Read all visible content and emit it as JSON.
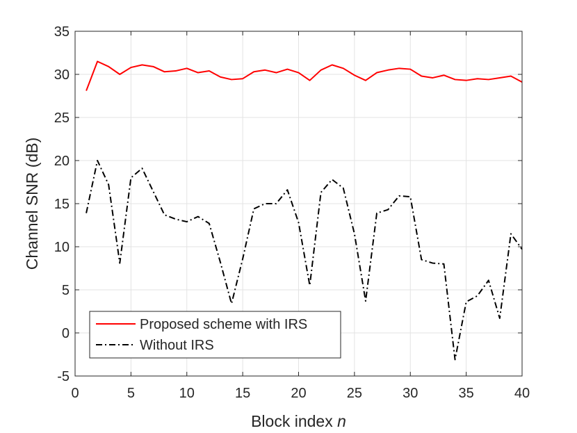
{
  "chart_data": {
    "type": "line",
    "title": "",
    "xlabel": "Block index",
    "xlabel_var": "n",
    "ylabel": "Channel SNR (dB)",
    "xlim": [
      0,
      40
    ],
    "ylim": [
      -5,
      35
    ],
    "xticks": [
      0,
      5,
      10,
      15,
      20,
      25,
      30,
      35,
      40
    ],
    "yticks": [
      -5,
      0,
      5,
      10,
      15,
      20,
      25,
      30,
      35
    ],
    "xtick_labels": [
      "0",
      "5",
      "10",
      "15",
      "20",
      "25",
      "30",
      "35",
      "40"
    ],
    "ytick_labels": [
      "-5",
      "0",
      "5",
      "10",
      "15",
      "20",
      "25",
      "30",
      "35"
    ],
    "grid": true,
    "legend_position": "bottom-left",
    "x": [
      1,
      2,
      3,
      4,
      5,
      6,
      7,
      8,
      9,
      10,
      11,
      12,
      13,
      14,
      15,
      16,
      17,
      18,
      19,
      20,
      21,
      22,
      23,
      24,
      25,
      26,
      27,
      28,
      29,
      30,
      31,
      32,
      33,
      34,
      35,
      36,
      37,
      38,
      39,
      40
    ],
    "series": [
      {
        "name": "Proposed scheme with IRS",
        "color": "#ff0000",
        "line_style": "solid",
        "values": [
          28.1,
          31.5,
          30.9,
          30.0,
          30.8,
          31.1,
          30.9,
          30.3,
          30.4,
          30.7,
          30.2,
          30.4,
          29.7,
          29.4,
          29.5,
          30.3,
          30.5,
          30.2,
          30.6,
          30.2,
          29.3,
          30.5,
          31.1,
          30.7,
          29.9,
          29.3,
          30.2,
          30.5,
          30.7,
          30.6,
          29.8,
          29.6,
          29.9,
          29.4,
          29.3,
          29.5,
          29.4,
          29.6,
          29.8,
          29.1
        ]
      },
      {
        "name": "Without IRS",
        "color": "#000000",
        "line_style": "dash-dot",
        "values": [
          13.9,
          20.0,
          17.2,
          8.1,
          18.0,
          19.1,
          16.4,
          13.7,
          13.2,
          12.9,
          13.5,
          12.7,
          8.2,
          3.4,
          8.6,
          14.4,
          15.0,
          15.0,
          16.6,
          12.8,
          5.5,
          16.3,
          17.8,
          16.8,
          11.5,
          3.7,
          13.9,
          14.3,
          15.9,
          15.8,
          8.5,
          8.1,
          8.0,
          -3.1,
          3.6,
          4.3,
          6.1,
          1.7,
          11.5,
          9.7
        ]
      }
    ]
  }
}
